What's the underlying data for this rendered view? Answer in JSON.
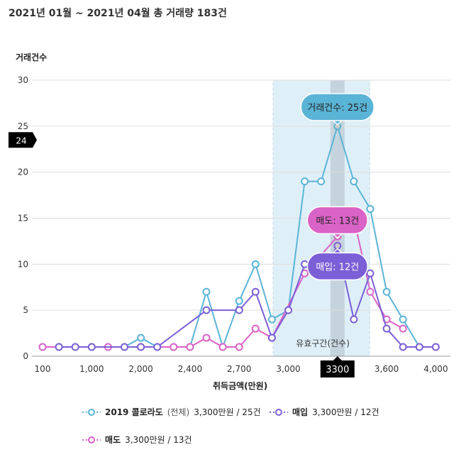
{
  "title": "2021년 01월 ~ 2021년 04월 총 거래량 183건",
  "chart_data": {
    "type": "line",
    "ylabel": "거래건수",
    "xlabel": "취득금액(만원)",
    "ylim": [
      0,
      30
    ],
    "y_ticks": [
      0,
      5,
      10,
      15,
      20,
      25,
      30
    ],
    "grid": true,
    "x_tick_labels": [
      "100",
      "",
      "",
      "1,000",
      "",
      "",
      "2,000",
      "",
      "",
      "2,400",
      "",
      "",
      "2,700",
      "",
      "",
      "3,000",
      "",
      "",
      "3300",
      "",
      "",
      "3,600",
      "",
      "",
      "4,000"
    ],
    "highlight_band_label": "유효구간(건수)",
    "highlight_band_range_index": [
      14.5,
      20.4
    ],
    "cursor_index": 18,
    "cursor_label": "3300",
    "y_marker_label": "24",
    "y_marker_value": 23.5,
    "legend_position": "bottom",
    "series": [
      {
        "name": "2019 콜로라도",
        "name_suffix": "(전체)",
        "summary": "3,300만원 / 25건",
        "color": "#5ab4d6",
        "tooltip": "거래건수: 25건",
        "values": [
          1,
          1,
          1,
          1,
          1,
          1,
          2,
          1,
          1,
          1,
          7,
          1,
          6,
          10,
          4,
          5,
          19,
          19,
          25,
          19,
          16,
          7,
          4,
          1,
          null
        ]
      },
      {
        "name": "매입",
        "summary": "3,300만원 / 12건",
        "color": "#7b5fd6",
        "tooltip": "매입: 12건",
        "values": [
          null,
          1,
          1,
          1,
          null,
          1,
          1,
          1,
          null,
          null,
          5,
          null,
          5,
          7,
          2,
          5,
          10,
          9,
          12,
          4,
          9,
          3,
          1,
          1,
          1
        ]
      },
      {
        "name": "매도",
        "summary": "3,300만원 / 13건",
        "color": "#d963c6",
        "tooltip": "매도: 13건",
        "values": [
          1,
          null,
          null,
          null,
          1,
          null,
          1,
          null,
          1,
          1,
          2,
          1,
          1,
          3,
          2,
          null,
          9,
          null,
          13,
          15,
          7,
          4,
          3,
          null,
          null
        ]
      }
    ]
  }
}
